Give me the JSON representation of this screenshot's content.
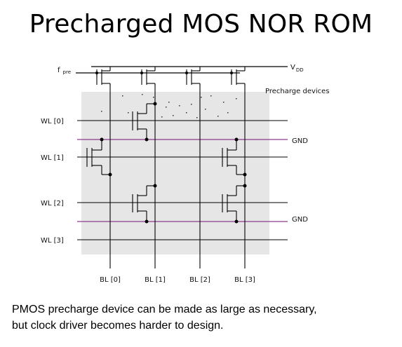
{
  "title": "Precharged MOS NOR ROM",
  "labels": {
    "fpre": "f",
    "fpre_sub": "pre",
    "vdd": "V",
    "vdd_sub": "DD",
    "precharge_devices": "Precharge devices",
    "gnd_top": "GND",
    "gnd_bottom": "GND"
  },
  "word_lines": [
    "WL [0]",
    "WL [1]",
    "WL [2]",
    "WL [3]"
  ],
  "bit_lines": [
    "BL [0]",
    "BL [1]",
    "BL [2]",
    "BL [3]"
  ],
  "caption": {
    "line1": "PMOS precharge device can be made as large as necessary,",
    "line2": "but clock driver becomes harder to design."
  },
  "colors": {
    "gnd_line": "#8a3a8a",
    "array_bg": "#e6e6e6",
    "wire": "#000000"
  }
}
